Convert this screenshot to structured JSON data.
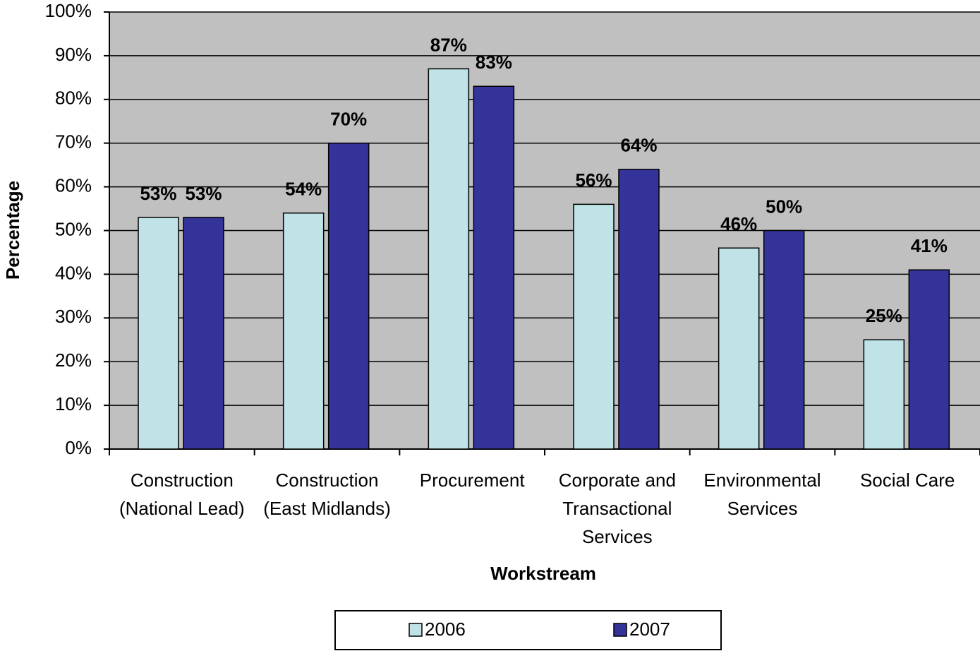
{
  "chart_data": {
    "type": "bar",
    "categories": [
      "Construction (National Lead)",
      "Construction (East Midlands)",
      "Procurement",
      "Corporate and Transactional Services",
      "Environmental Services",
      "Social Care"
    ],
    "series": [
      {
        "name": "2006",
        "color": "#bfe3e6",
        "values": [
          53,
          54,
          87,
          56,
          46,
          25
        ],
        "value_labels": [
          "53%",
          "54%",
          "87%",
          "56%",
          "46%",
          "25%"
        ]
      },
      {
        "name": "2007",
        "color": "#333399",
        "values": [
          53,
          70,
          83,
          64,
          50,
          41
        ],
        "value_labels": [
          "53%",
          "70%",
          "83%",
          "64%",
          "50%",
          "41%"
        ]
      }
    ],
    "xlabel": "Workstream",
    "ylabel": "Percentage",
    "ylim": [
      0,
      100
    ],
    "yticks": [
      {
        "value": 0,
        "label": "0%"
      },
      {
        "value": 10,
        "label": "10%"
      },
      {
        "value": 20,
        "label": "20%"
      },
      {
        "value": 30,
        "label": "30%"
      },
      {
        "value": 40,
        "label": "40%"
      },
      {
        "value": 50,
        "label": "50%"
      },
      {
        "value": 60,
        "label": "60%"
      },
      {
        "value": 70,
        "label": "70%"
      },
      {
        "value": 80,
        "label": "80%"
      },
      {
        "value": 90,
        "label": "90%"
      },
      {
        "value": 100,
        "label": "100%"
      }
    ],
    "grid": true,
    "legend": "bottom"
  }
}
